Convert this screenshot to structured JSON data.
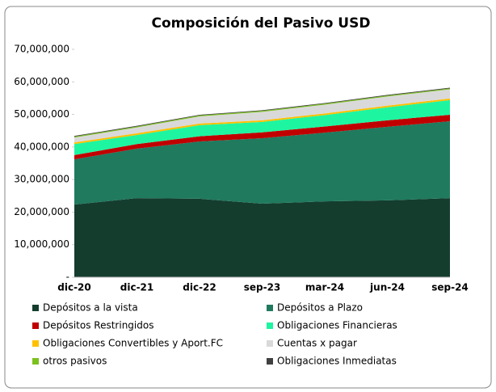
{
  "chart_data": {
    "type": "stacked_area",
    "title": "Composición del Pasivo USD",
    "categories": [
      "dic-20",
      "dic-21",
      "dic-22",
      "sep-23",
      "mar-24",
      "jun-24",
      "sep-24"
    ],
    "series": [
      {
        "name": "Depósitos a la vista",
        "color": "#143d2e",
        "values": [
          22300000,
          24300000,
          24100000,
          22600000,
          23300000,
          23600000,
          24300000
        ]
      },
      {
        "name": "Depósitos a Plazo",
        "color": "#207a5e",
        "values": [
          13900000,
          15200000,
          17600000,
          20100000,
          21100000,
          22600000,
          23600000
        ]
      },
      {
        "name": "Depósitos Restringidos",
        "color": "#c00000",
        "values": [
          1300000,
          1400000,
          1600000,
          1800000,
          1900000,
          2000000,
          2000000
        ]
      },
      {
        "name": "Obligaciones Financieras",
        "color": "#1ef5a0",
        "values": [
          3400000,
          2800000,
          3400000,
          3200000,
          3500000,
          4000000,
          4500000
        ]
      },
      {
        "name": "Obligaciones Convertibles y Aport.FC",
        "color": "#ffc000",
        "values": [
          500000,
          500000,
          500000,
          500000,
          500000,
          500000,
          500000
        ]
      },
      {
        "name": "Cuentas x pagar",
        "color": "#d9d9d9",
        "values": [
          1500000,
          1800000,
          2200000,
          2600000,
          2700000,
          2800000,
          2800000
        ]
      },
      {
        "name": "otros pasivos",
        "color": "#7cc01e",
        "values": [
          300000,
          300000,
          300000,
          300000,
          300000,
          300000,
          300000
        ]
      },
      {
        "name": "Obligaciones Inmediatas",
        "color": "#404040",
        "values": [
          200000,
          200000,
          200000,
          200000,
          200000,
          200000,
          200000
        ]
      }
    ],
    "ylim": [
      0,
      70000000
    ],
    "yticks": [
      {
        "value": 0,
        "label": "-"
      },
      {
        "value": 10000000,
        "label": "10,000,000"
      },
      {
        "value": 20000000,
        "label": "20,000,000"
      },
      {
        "value": 30000000,
        "label": "30,000,000"
      },
      {
        "value": 40000000,
        "label": "40,000,000"
      },
      {
        "value": 50000000,
        "label": "50,000,000"
      },
      {
        "value": 60000000,
        "label": "60,000,000"
      },
      {
        "value": 70000000,
        "label": "70,000,000"
      }
    ],
    "grid": false
  }
}
